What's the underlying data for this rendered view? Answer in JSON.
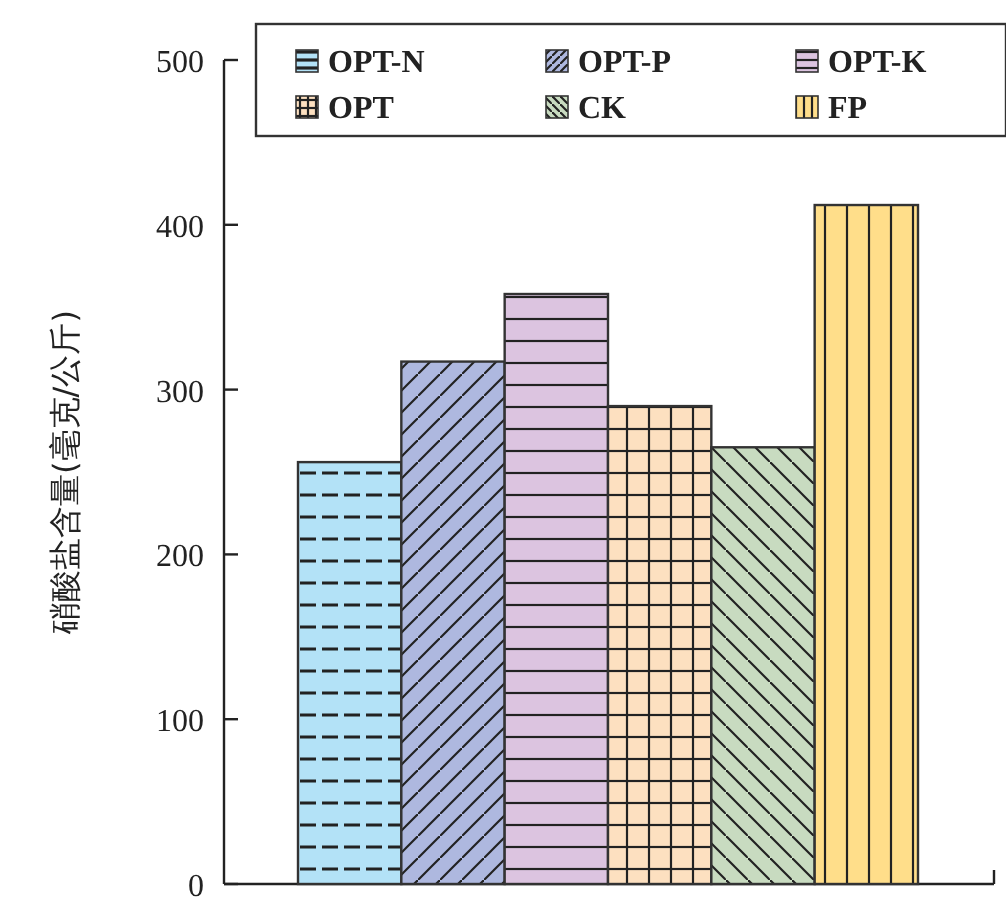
{
  "chart_data": {
    "type": "bar",
    "ylabel": "硝酸盐含量(毫克/公斤)",
    "categories": [
      null
    ],
    "ylim": [
      0,
      500
    ],
    "yticks": [
      0,
      100,
      200,
      300,
      400,
      500
    ],
    "legend": "top",
    "grid": false,
    "series": [
      {
        "name": "OPT-N",
        "color": "#b3e2f7",
        "values": [
          256
        ]
      },
      {
        "name": "OPT-P",
        "color": "#aeb8df",
        "values": [
          317
        ]
      },
      {
        "name": "OPT-K",
        "color": "#dcc4e0",
        "values": [
          358
        ]
      },
      {
        "name": "OPT",
        "color": "#fde0c0",
        "values": [
          290
        ]
      },
      {
        "name": "CK",
        "color": "#c8dbc0",
        "values": [
          265
        ]
      },
      {
        "name": "FP",
        "color": "#ffde8a",
        "values": [
          412
        ]
      }
    ]
  }
}
